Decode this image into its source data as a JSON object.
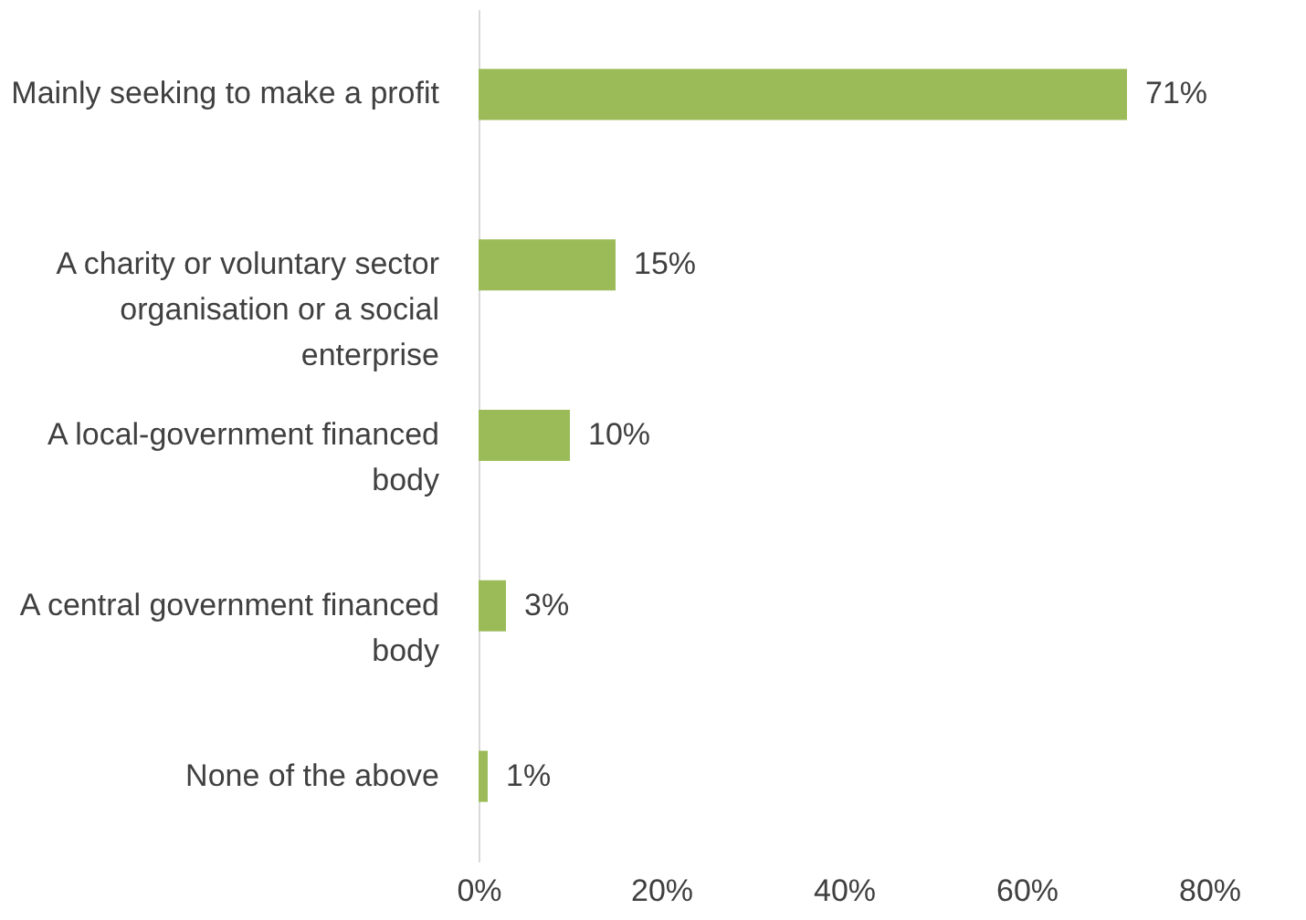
{
  "chart_data": {
    "type": "bar",
    "orientation": "horizontal",
    "categories": [
      "Mainly seeking to make a profit",
      "A charity or voluntary sector organisation or a social enterprise",
      "A local-government financed body",
      "A central government financed body",
      "None of the above"
    ],
    "values": [
      71,
      15,
      10,
      3,
      1
    ],
    "value_labels": [
      "71%",
      "15%",
      "10%",
      "3%",
      "1%"
    ],
    "color": "#9bbb59",
    "xlim": [
      0,
      80
    ],
    "xticks": [
      {
        "value": 0,
        "label": "0%"
      },
      {
        "value": 20,
        "label": "20%"
      },
      {
        "value": 40,
        "label": "40%"
      },
      {
        "value": 60,
        "label": "60%"
      },
      {
        "value": 80,
        "label": "80%"
      }
    ],
    "grid": false
  }
}
